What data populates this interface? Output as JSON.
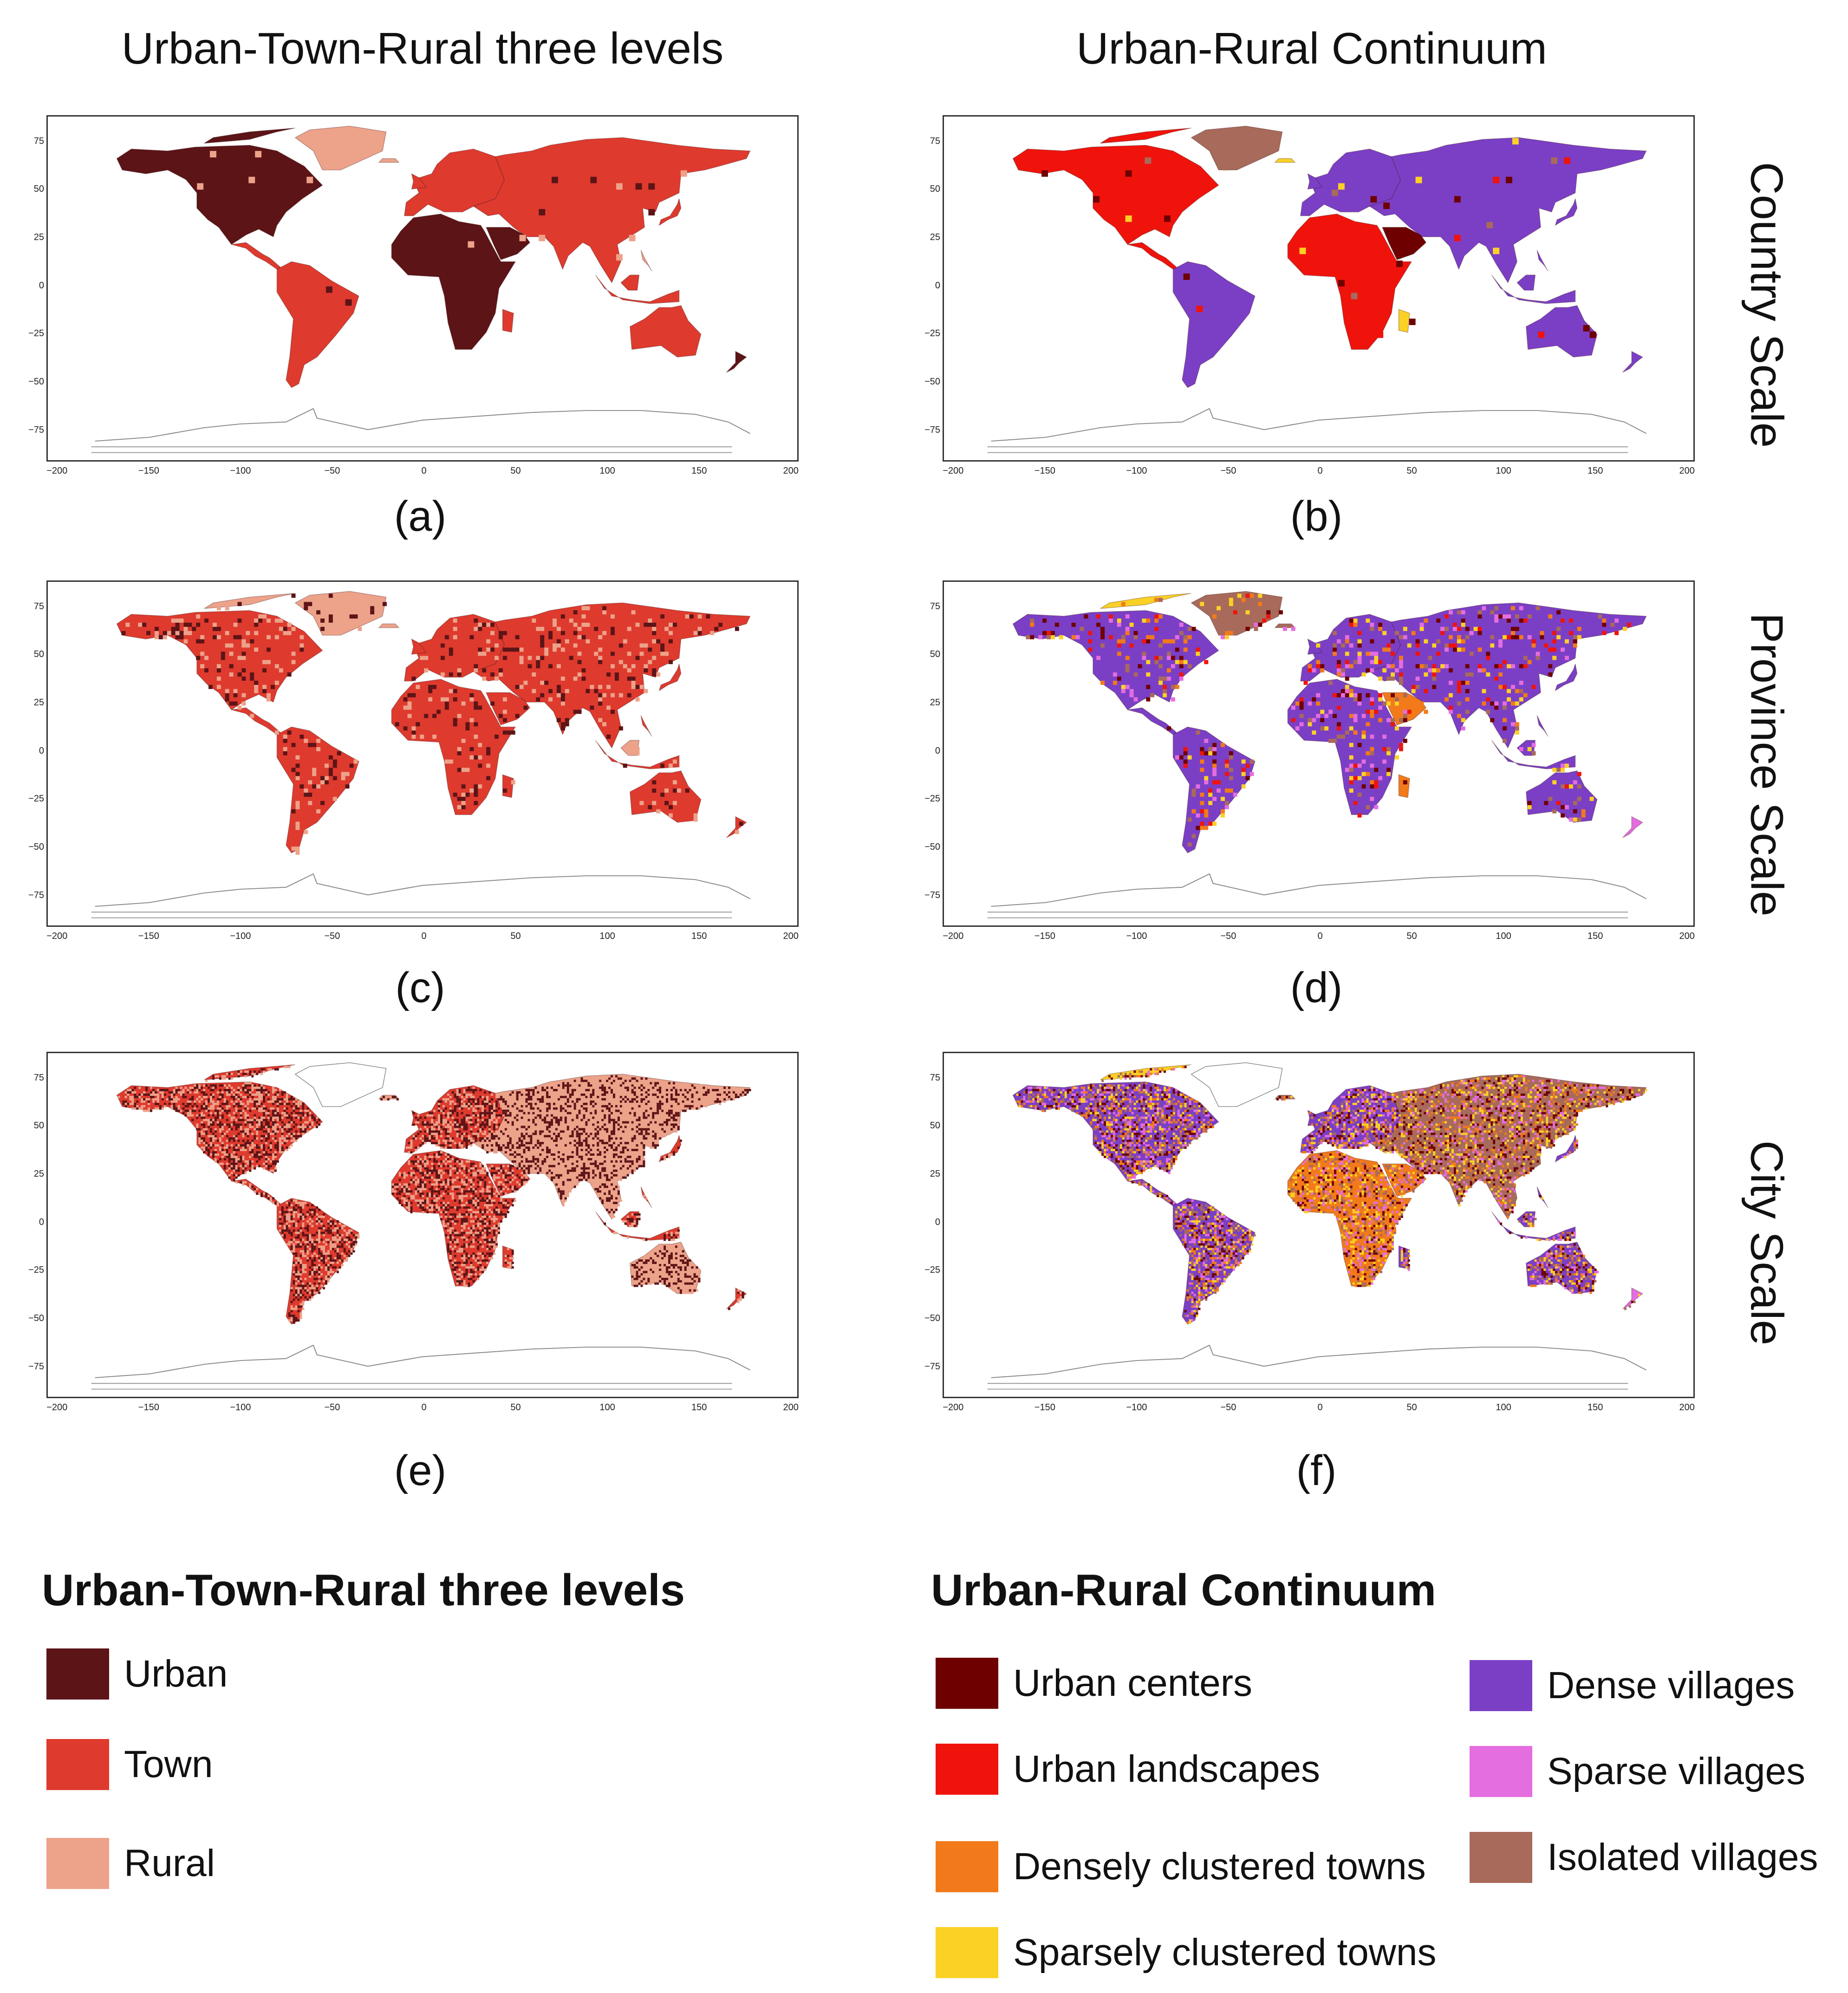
{
  "columns": {
    "left_title": "Urban-Town-Rural three levels",
    "right_title": "Urban-Rural Continuum"
  },
  "rows": {
    "country": "Country Scale",
    "province": "Province Scale",
    "city": "City Scale"
  },
  "captions": [
    "(a)",
    "(b)",
    "(c)",
    "(d)",
    "(e)",
    "(f)"
  ],
  "axes": {
    "x_ticks": [
      "−200",
      "−150",
      "−100",
      "−50",
      "0",
      "50",
      "100",
      "150",
      "200"
    ],
    "y_ticks": [
      "75",
      "50",
      "25",
      "0",
      "−25",
      "−50",
      "−75"
    ]
  },
  "legend_left": {
    "title": "Urban-Town-Rural three levels",
    "items": [
      {
        "label": "Urban",
        "color": "#5c1417"
      },
      {
        "label": "Town",
        "color": "#df3a2e"
      },
      {
        "label": "Rural",
        "color": "#eda28a"
      }
    ]
  },
  "legend_right": {
    "title": "Urban-Rural Continuum",
    "items": [
      {
        "label": "Urban centers",
        "color": "#6e0000"
      },
      {
        "label": "Urban landscapes",
        "color": "#f0130c"
      },
      {
        "label": "Densely clustered towns",
        "color": "#f27a1a"
      },
      {
        "label": "Sparsely clustered towns",
        "color": "#fbd126"
      },
      {
        "label": "Dense villages",
        "color": "#7b3fc6"
      },
      {
        "label": "Sparse villages",
        "color": "#e46de0"
      },
      {
        "label": "Isolated villages",
        "color": "#a86a5a"
      }
    ]
  }
}
